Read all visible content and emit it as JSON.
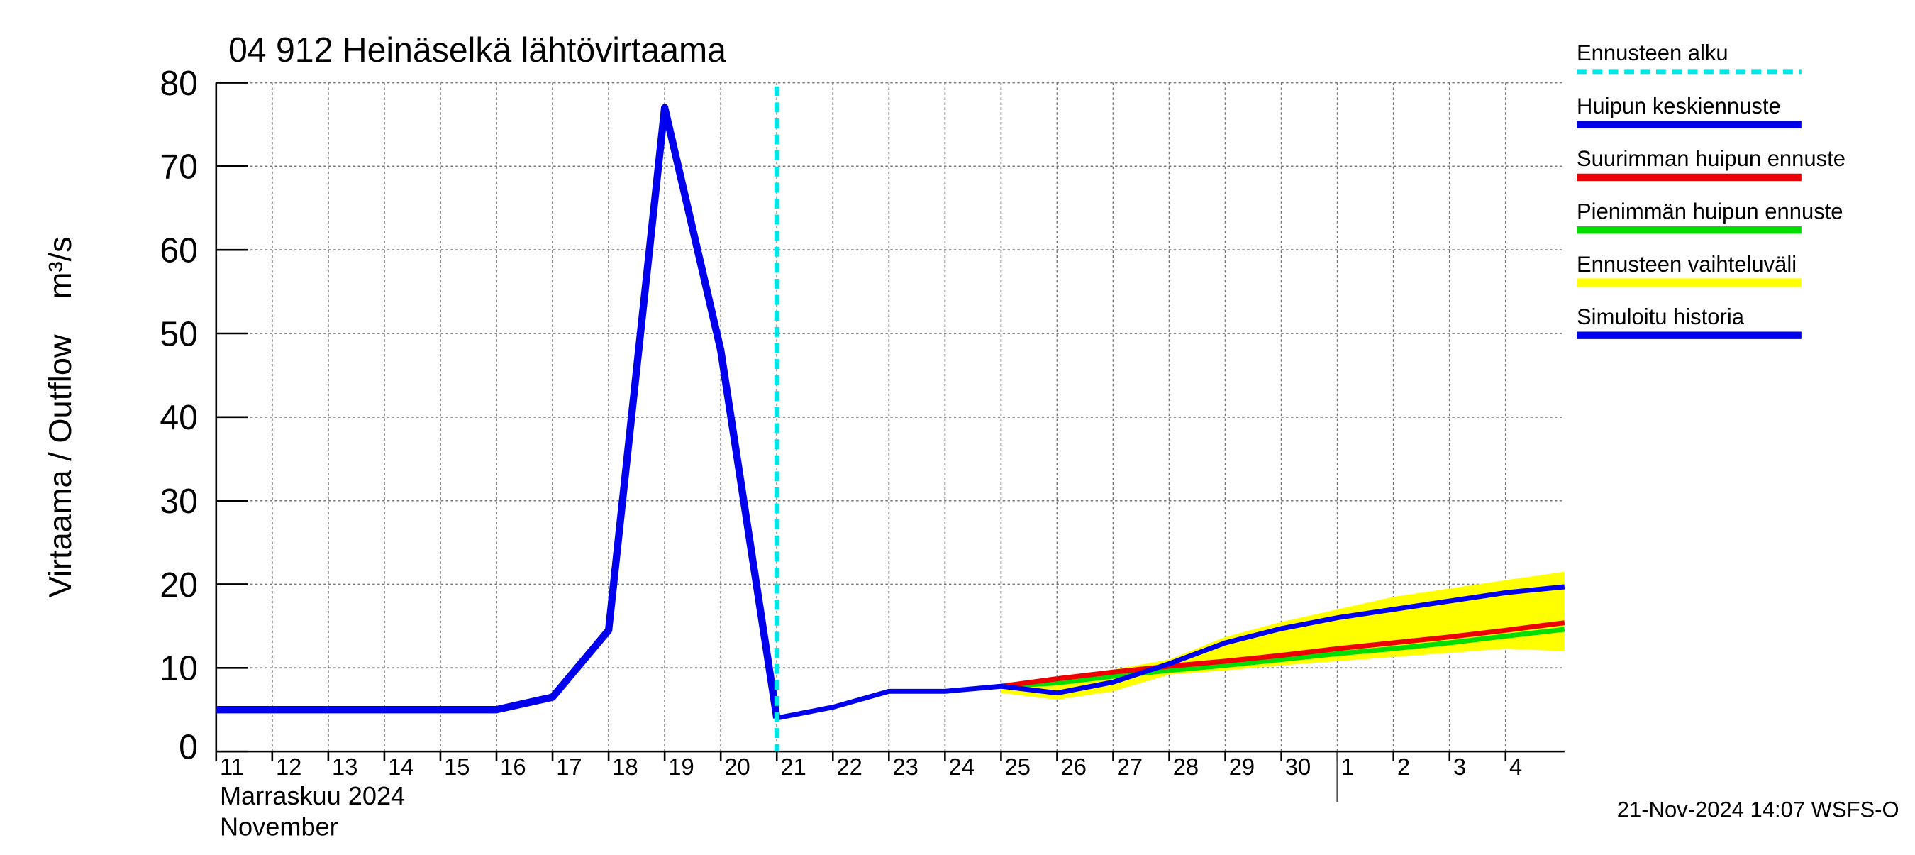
{
  "chart_data": {
    "type": "line",
    "title": "04 912 Heinäselkä lähtövirtaama",
    "y_label": "Virtaama / Outflow    m³/s",
    "x_label_fi": "Marraskuu 2024",
    "x_label_en": "November",
    "footer": "21-Nov-2024 14:07 WSFS-O",
    "forecast_start": 10,
    "forecast_start_label": "Ennusteen alku",
    "forecast_start_color": "#00e5e5",
    "month_boundary": 20,
    "grid": true,
    "xlim": [
      0,
      24.05
    ],
    "ylim": [
      0,
      80
    ],
    "yticks": [
      0,
      10,
      20,
      30,
      40,
      50,
      60,
      70,
      80
    ],
    "xticks": [
      {
        "value": 0,
        "label": "11"
      },
      {
        "value": 1,
        "label": "12"
      },
      {
        "value": 2,
        "label": "13"
      },
      {
        "value": 3,
        "label": "14"
      },
      {
        "value": 4,
        "label": "15"
      },
      {
        "value": 5,
        "label": "16"
      },
      {
        "value": 6,
        "label": "17"
      },
      {
        "value": 7,
        "label": "18"
      },
      {
        "value": 8,
        "label": "19"
      },
      {
        "value": 9,
        "label": "20"
      },
      {
        "value": 10,
        "label": "21"
      },
      {
        "value": 11,
        "label": "22"
      },
      {
        "value": 12,
        "label": "23"
      },
      {
        "value": 13,
        "label": "24"
      },
      {
        "value": 14,
        "label": "25"
      },
      {
        "value": 15,
        "label": "26"
      },
      {
        "value": 16,
        "label": "27"
      },
      {
        "value": 17,
        "label": "28"
      },
      {
        "value": 18,
        "label": "29"
      },
      {
        "value": 19,
        "label": "30"
      },
      {
        "value": 20,
        "label": "1"
      },
      {
        "value": 21,
        "label": "2"
      },
      {
        "value": 22,
        "label": "3"
      },
      {
        "value": 23,
        "label": "4"
      }
    ],
    "x": [
      0,
      1,
      2,
      3,
      4,
      5,
      6,
      7,
      8,
      9,
      10,
      11,
      12,
      13,
      14,
      15,
      16,
      17,
      18,
      19,
      20,
      21,
      22,
      23,
      24.05
    ],
    "series": [
      {
        "name": "Huipun keskiennuste",
        "color": "#0000ee",
        "width": 4,
        "values": [
          null,
          null,
          null,
          null,
          null,
          null,
          null,
          null,
          null,
          null,
          4,
          5.3,
          7.2,
          7.2,
          7.8,
          7,
          8.3,
          10.5,
          13,
          14.7,
          16,
          17,
          18,
          19,
          19.7
        ]
      },
      {
        "name": "Suurimman huipun ennuste",
        "color": "#ee0000",
        "width": 4,
        "values": [
          null,
          null,
          null,
          null,
          null,
          null,
          null,
          null,
          null,
          null,
          null,
          null,
          null,
          null,
          7.8,
          8.7,
          9.5,
          10.2,
          10.8,
          11.5,
          12.3,
          13,
          13.7,
          14.5,
          15.4
        ]
      },
      {
        "name": "Pienimmän huipun ennuste",
        "color": "#00dd00",
        "width": 4,
        "values": [
          null,
          null,
          null,
          null,
          null,
          null,
          null,
          null,
          null,
          null,
          null,
          null,
          null,
          null,
          7.8,
          8.2,
          9,
          9.7,
          10.3,
          11,
          11.7,
          12.3,
          13,
          13.8,
          14.6
        ]
      },
      {
        "name": "Ennusteen vaihteluväli",
        "color": "#ffff00",
        "band": true,
        "upper": [
          null,
          null,
          null,
          null,
          null,
          null,
          null,
          null,
          null,
          null,
          null,
          null,
          null,
          null,
          8,
          8.8,
          9.8,
          11,
          13.7,
          15.5,
          17,
          18.5,
          19.5,
          20.5,
          21.5
        ],
        "lower": [
          null,
          null,
          null,
          null,
          null,
          null,
          null,
          null,
          null,
          null,
          null,
          null,
          null,
          null,
          7,
          6.2,
          7.2,
          9.2,
          9.7,
          10.3,
          10.8,
          11.3,
          11.8,
          12.3,
          12
        ]
      },
      {
        "name": "Simuloitu historia",
        "color": "#0000ee",
        "width": 6,
        "values": [
          5,
          5,
          5,
          5,
          5,
          5,
          6.5,
          14.5,
          77,
          48,
          4,
          null,
          null,
          null,
          null,
          null,
          null,
          null,
          null,
          null,
          null,
          null,
          null,
          null,
          null
        ]
      }
    ]
  }
}
